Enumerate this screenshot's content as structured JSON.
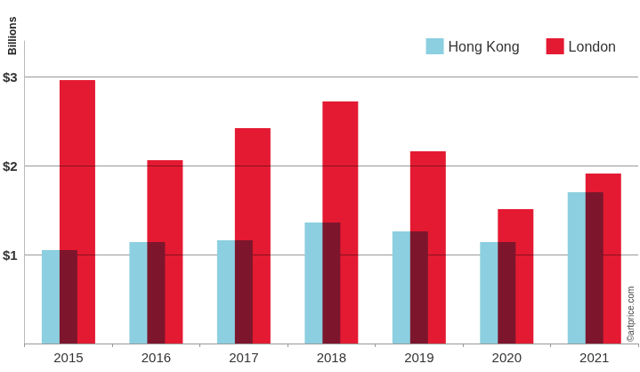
{
  "chart_data": {
    "type": "bar",
    "y_label": "Billions",
    "source": "©artprice.com",
    "categories": [
      "2015",
      "2016",
      "2017",
      "2018",
      "2019",
      "2020",
      "2021"
    ],
    "series": [
      {
        "name": "Hong Kong",
        "color": "#8ccfe0",
        "values": [
          1.05,
          1.14,
          1.16,
          1.36,
          1.26,
          1.14,
          1.7
        ]
      },
      {
        "name": "London",
        "color": "#e41a32",
        "values": [
          2.96,
          2.06,
          2.42,
          2.72,
          2.16,
          1.51,
          1.91
        ]
      }
    ],
    "ylim": [
      0,
      3.4
    ],
    "yticks": [
      {
        "value": 1,
        "label": "$1"
      },
      {
        "value": 2,
        "label": "$2"
      },
      {
        "value": 3,
        "label": "$3"
      }
    ],
    "grid": true,
    "legend": "top-right"
  }
}
